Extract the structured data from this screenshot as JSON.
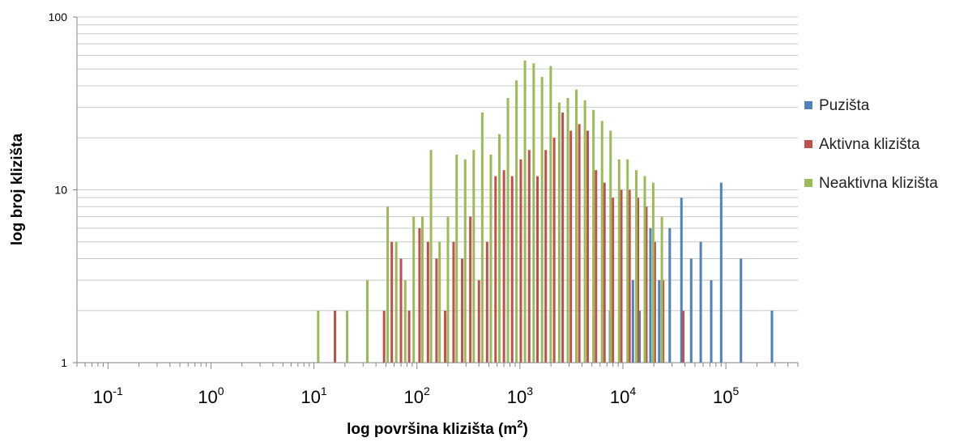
{
  "chart_data": {
    "type": "bar",
    "xlabel": "log površina klizišta (m",
    "xlabel_sup": "2",
    "xlabel_end": ")",
    "ylabel": "log broj klizišta",
    "x_scale": "log",
    "y_scale": "log",
    "xlim": [
      0.05,
      500000
    ],
    "ylim": [
      1,
      100
    ],
    "x_ticks": [
      {
        "value": 0.1,
        "base": "10",
        "exp": "-1"
      },
      {
        "value": 1,
        "base": "10",
        "exp": "0"
      },
      {
        "value": 10,
        "base": "10",
        "exp": "1"
      },
      {
        "value": 100,
        "base": "10",
        "exp": "2"
      },
      {
        "value": 1000,
        "base": "10",
        "exp": "3"
      },
      {
        "value": 10000,
        "base": "10",
        "exp": "4"
      },
      {
        "value": 100000,
        "base": "10",
        "exp": "5"
      }
    ],
    "y_ticks": [
      {
        "value": 1,
        "label": "1"
      },
      {
        "value": 10,
        "label": "10"
      },
      {
        "value": 100,
        "label": "100"
      }
    ],
    "grid": true,
    "legend_position": "right",
    "series": [
      {
        "name": "Puzišta",
        "color": "#4F81BD",
        "points": [
          {
            "x": 7500,
            "y": 2
          },
          {
            "x": 9600,
            "y": 3
          },
          {
            "x": 11500,
            "y": 2
          },
          {
            "x": 12500,
            "y": 3
          },
          {
            "x": 14500,
            "y": 2
          },
          {
            "x": 18500,
            "y": 6
          },
          {
            "x": 22500,
            "y": 3
          },
          {
            "x": 28500,
            "y": 6
          },
          {
            "x": 37000,
            "y": 9
          },
          {
            "x": 46000,
            "y": 4
          },
          {
            "x": 57000,
            "y": 5
          },
          {
            "x": 72000,
            "y": 3
          },
          {
            "x": 90000,
            "y": 11
          },
          {
            "x": 140000,
            "y": 4
          },
          {
            "x": 280000,
            "y": 2
          }
        ]
      },
      {
        "name": "Aktivna klizišta",
        "color": "#C0504D",
        "points": [
          {
            "x": 16,
            "y": 2
          },
          {
            "x": 48,
            "y": 2
          },
          {
            "x": 57,
            "y": 5
          },
          {
            "x": 70,
            "y": 4
          },
          {
            "x": 84,
            "y": 2
          },
          {
            "x": 106,
            "y": 6
          },
          {
            "x": 128,
            "y": 5
          },
          {
            "x": 155,
            "y": 4
          },
          {
            "x": 188,
            "y": 2
          },
          {
            "x": 227,
            "y": 5
          },
          {
            "x": 275,
            "y": 4
          },
          {
            "x": 330,
            "y": 7
          },
          {
            "x": 400,
            "y": 3
          },
          {
            "x": 480,
            "y": 5
          },
          {
            "x": 580,
            "y": 12
          },
          {
            "x": 700,
            "y": 13
          },
          {
            "x": 840,
            "y": 12
          },
          {
            "x": 1020,
            "y": 15
          },
          {
            "x": 1230,
            "y": 17
          },
          {
            "x": 1480,
            "y": 12
          },
          {
            "x": 1780,
            "y": 17
          },
          {
            "x": 2150,
            "y": 20
          },
          {
            "x": 2600,
            "y": 28
          },
          {
            "x": 3120,
            "y": 22
          },
          {
            "x": 3770,
            "y": 24
          },
          {
            "x": 4550,
            "y": 22
          },
          {
            "x": 5480,
            "y": 13
          },
          {
            "x": 6620,
            "y": 11
          },
          {
            "x": 8000,
            "y": 9
          },
          {
            "x": 9650,
            "y": 10
          },
          {
            "x": 11600,
            "y": 10
          },
          {
            "x": 14000,
            "y": 9
          },
          {
            "x": 16900,
            "y": 8
          },
          {
            "x": 20400,
            "y": 5
          },
          {
            "x": 24600,
            "y": 3
          },
          {
            "x": 38500,
            "y": 2
          }
        ]
      },
      {
        "name": "Neaktivna klizišta",
        "color": "#9BBB59",
        "points": [
          {
            "x": 11,
            "y": 2
          },
          {
            "x": 21,
            "y": 2
          },
          {
            "x": 33,
            "y": 3
          },
          {
            "x": 52,
            "y": 8
          },
          {
            "x": 63,
            "y": 5
          },
          {
            "x": 77,
            "y": 3
          },
          {
            "x": 93,
            "y": 7
          },
          {
            "x": 113,
            "y": 7
          },
          {
            "x": 137,
            "y": 17
          },
          {
            "x": 166,
            "y": 5
          },
          {
            "x": 200,
            "y": 7
          },
          {
            "x": 243,
            "y": 16
          },
          {
            "x": 294,
            "y": 15
          },
          {
            "x": 356,
            "y": 17
          },
          {
            "x": 431,
            "y": 28
          },
          {
            "x": 522,
            "y": 16
          },
          {
            "x": 632,
            "y": 21
          },
          {
            "x": 765,
            "y": 34
          },
          {
            "x": 926,
            "y": 43
          },
          {
            "x": 1120,
            "y": 56
          },
          {
            "x": 1360,
            "y": 54
          },
          {
            "x": 1640,
            "y": 45
          },
          {
            "x": 1990,
            "y": 52
          },
          {
            "x": 2410,
            "y": 32
          },
          {
            "x": 2920,
            "y": 34
          },
          {
            "x": 3530,
            "y": 38
          },
          {
            "x": 4280,
            "y": 33
          },
          {
            "x": 5180,
            "y": 29
          },
          {
            "x": 6270,
            "y": 25
          },
          {
            "x": 7590,
            "y": 22
          },
          {
            "x": 9190,
            "y": 15
          },
          {
            "x": 11100,
            "y": 15
          },
          {
            "x": 13500,
            "y": 13
          },
          {
            "x": 16300,
            "y": 12
          },
          {
            "x": 19700,
            "y": 11
          },
          {
            "x": 23900,
            "y": 7
          }
        ]
      }
    ]
  }
}
